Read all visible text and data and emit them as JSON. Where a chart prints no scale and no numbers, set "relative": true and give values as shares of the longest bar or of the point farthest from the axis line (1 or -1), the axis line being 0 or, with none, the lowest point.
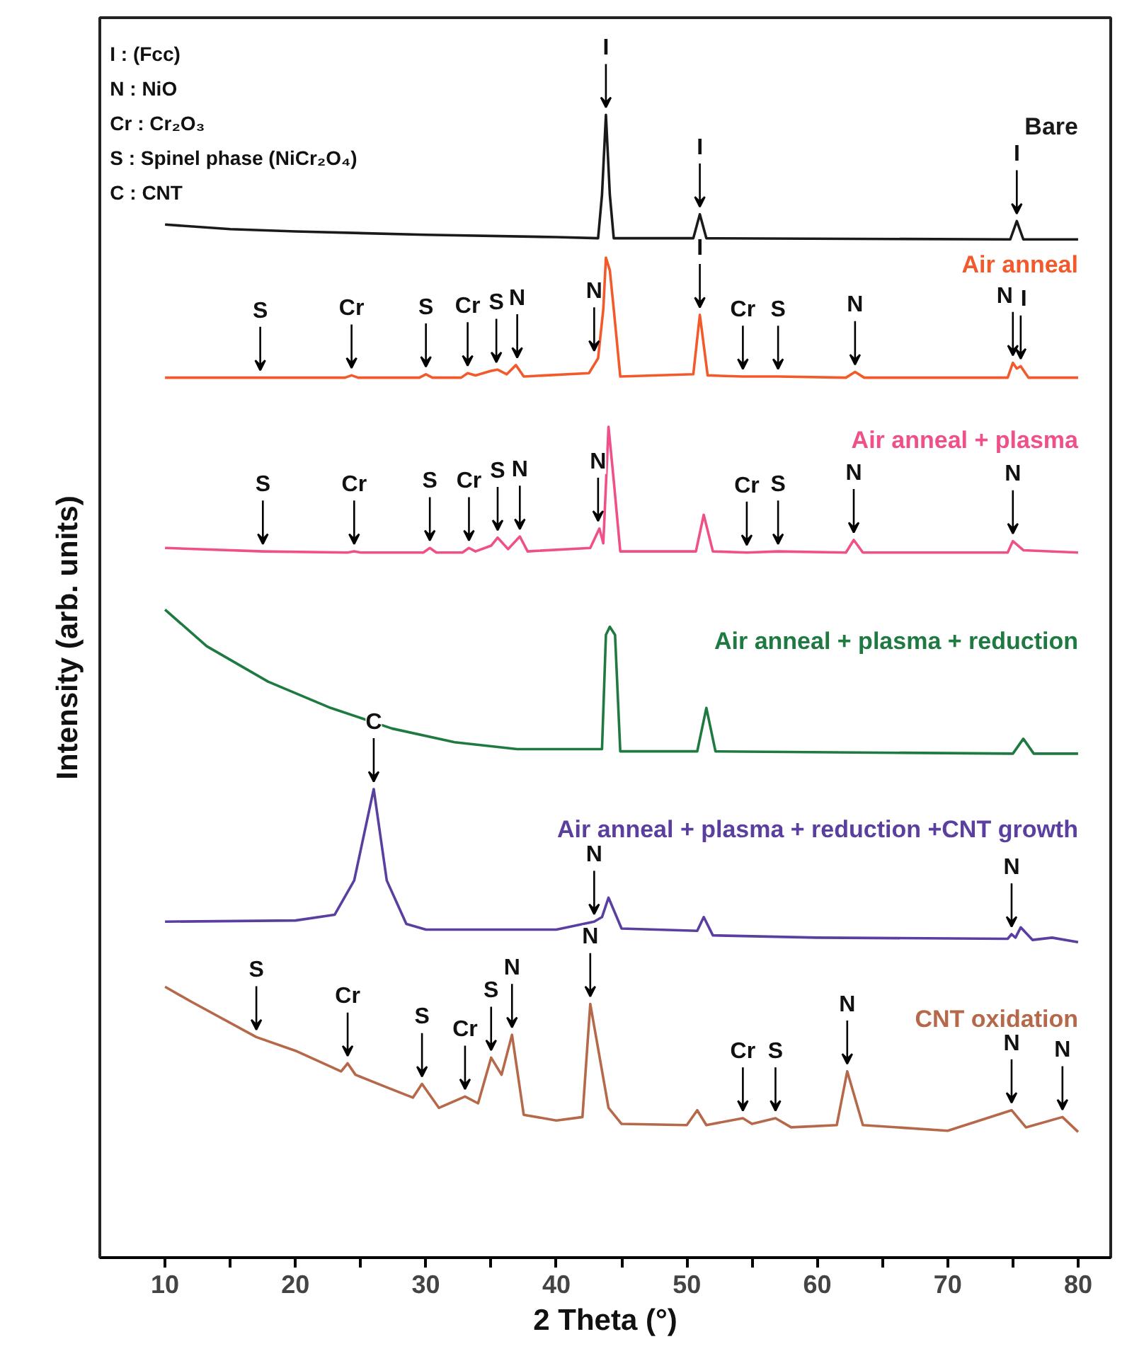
{
  "chart_data": {
    "type": "line",
    "relative": true,
    "xlabel": "2 Theta (°)",
    "ylabel": "Intensity (arb. units)",
    "xlim": [
      5,
      82.5
    ],
    "xticks": [
      10,
      {
        "value": 15,
        "label": null
      },
      20,
      {
        "value": 25,
        "label": null
      },
      30,
      {
        "value": 35,
        "label": null
      },
      40,
      {
        "value": 45,
        "label": null
      },
      50,
      {
        "value": 55,
        "label": null
      },
      60,
      {
        "value": 65,
        "label": null
      },
      70,
      {
        "value": 75,
        "label": null
      },
      80
    ],
    "tick_labels": "x",
    "grid": false,
    "legend": false,
    "series": [
      {
        "name": "Bare",
        "color": "#1a1a1a",
        "x": [
          10,
          15,
          20,
          30,
          40,
          43.2,
          43.5,
          43.8,
          44.1,
          44.4,
          50.5,
          51.0,
          51.5,
          74.8,
          75.3,
          75.8,
          80
        ],
        "values": [
          0.904,
          0.9,
          0.898,
          0.895,
          0.893,
          0.892,
          0.93,
          1.0,
          0.93,
          0.892,
          0.892,
          0.913,
          0.892,
          0.891,
          0.907,
          0.891,
          0.891
        ]
      },
      {
        "name": "Air anneal",
        "color": "#f25a2c",
        "x": [
          10,
          17,
          23.8,
          24.3,
          24.8,
          29.5,
          30.0,
          30.5,
          32.7,
          33.2,
          33.8,
          35.0,
          35.5,
          36.2,
          36.9,
          37.5,
          42.5,
          43.2,
          43.6,
          43.8,
          44.1,
          44.4,
          44.9,
          50.5,
          51.0,
          51.6,
          54.3,
          57.0,
          62.2,
          62.9,
          63.6,
          74.6,
          75.0,
          75.3,
          75.6,
          76.2,
          80
        ],
        "values": [
          0.77,
          0.77,
          0.77,
          0.772,
          0.77,
          0.77,
          0.773,
          0.77,
          0.77,
          0.774,
          0.772,
          0.776,
          0.777,
          0.773,
          0.781,
          0.771,
          0.774,
          0.787,
          0.83,
          0.875,
          0.864,
          0.83,
          0.771,
          0.773,
          0.825,
          0.772,
          0.771,
          0.771,
          0.77,
          0.775,
          0.77,
          0.77,
          0.783,
          0.778,
          0.78,
          0.77,
          0.77
        ]
      },
      {
        "name": "Air anneal + plasma",
        "color": "#f0508a",
        "x": [
          10,
          17.5,
          24.0,
          24.5,
          25.0,
          29.8,
          30.3,
          30.8,
          32.8,
          33.3,
          33.8,
          35.0,
          35.5,
          36.3,
          37.2,
          37.8,
          42.6,
          43.3,
          43.6,
          44.0,
          44.4,
          44.9,
          50.7,
          51.3,
          52.0,
          54.6,
          57.0,
          62.2,
          62.8,
          63.5,
          74.6,
          75.0,
          75.8,
          80
        ],
        "values": [
          0.621,
          0.618,
          0.617,
          0.618,
          0.617,
          0.617,
          0.621,
          0.617,
          0.617,
          0.621,
          0.618,
          0.623,
          0.63,
          0.62,
          0.631,
          0.618,
          0.621,
          0.638,
          0.625,
          0.727,
          0.68,
          0.618,
          0.618,
          0.65,
          0.618,
          0.617,
          0.618,
          0.617,
          0.628,
          0.617,
          0.617,
          0.627,
          0.619,
          0.617
        ]
      },
      {
        "name": "Air anneal + plasma + reduction",
        "color": "#1e7a40",
        "x": [
          10,
          13.2,
          17.9,
          22.7,
          27.4,
          32.2,
          37.0,
          43.5,
          43.8,
          44.1,
          44.5,
          44.9,
          50.8,
          51.5,
          52.2,
          75.0,
          75.8,
          76.6,
          80
        ],
        "values": [
          0.567,
          0.535,
          0.504,
          0.481,
          0.463,
          0.451,
          0.445,
          0.445,
          0.545,
          0.552,
          0.545,
          0.443,
          0.443,
          0.481,
          0.443,
          0.441,
          0.454,
          0.441,
          0.441
        ]
      },
      {
        "name": "Air anneal + plasma + reduction +CNT growth",
        "color": "#5b3fa0",
        "x": [
          10,
          20,
          23,
          24.5,
          26.0,
          27.0,
          28.5,
          30,
          40,
          42.9,
          43.5,
          44.0,
          45.0,
          50.8,
          51.3,
          52.0,
          60,
          74.6,
          74.9,
          75.2,
          75.6,
          76.5,
          78,
          80
        ],
        "values": [
          0.294,
          0.295,
          0.3,
          0.33,
          0.41,
          0.33,
          0.292,
          0.287,
          0.287,
          0.294,
          0.298,
          0.315,
          0.288,
          0.286,
          0.298,
          0.282,
          0.28,
          0.279,
          0.283,
          0.28,
          0.289,
          0.278,
          0.28,
          0.276
        ]
      },
      {
        "name": "CNT oxidation",
        "color": "#b5694a",
        "x": [
          10,
          12,
          17,
          20,
          23.5,
          24.0,
          24.6,
          27,
          29.0,
          29.7,
          31,
          33.0,
          34.0,
          35.0,
          35.8,
          36.6,
          37.5,
          40,
          42.0,
          42.6,
          44.0,
          45,
          50,
          50.8,
          51.5,
          54.3,
          55,
          56.8,
          58,
          61.5,
          62.3,
          63.5,
          70,
          74.9,
          76,
          78.8,
          80
        ],
        "values": [
          0.237,
          0.224,
          0.193,
          0.181,
          0.163,
          0.17,
          0.16,
          0.149,
          0.14,
          0.152,
          0.131,
          0.141,
          0.135,
          0.175,
          0.16,
          0.195,
          0.125,
          0.12,
          0.123,
          0.222,
          0.131,
          0.117,
          0.116,
          0.129,
          0.116,
          0.122,
          0.117,
          0.122,
          0.114,
          0.116,
          0.163,
          0.116,
          0.111,
          0.129,
          0.114,
          0.123,
          0.11
        ]
      }
    ],
    "annotations": [
      "I : (Fcc)",
      "N : NiO",
      "Cr : Cr₂O₃",
      "S : Spinel phase (NiCr₂O₄)",
      "C : CNT",
      {
        "text": "I",
        "x": 43.8,
        "y": 1.0
      },
      {
        "text": "I",
        "x": 51.0,
        "y": 0.913
      },
      {
        "text": "I",
        "x": 75.3,
        "y": 0.907
      },
      {
        "text": "S",
        "x": 17.3,
        "y": 0.77
      },
      {
        "text": "Cr",
        "x": 24.3,
        "y": 0.772
      },
      {
        "text": "S",
        "x": 30.0,
        "y": 0.773
      },
      {
        "text": "Cr",
        "x": 33.2,
        "y": 0.774
      },
      {
        "text": "S",
        "x": 35.4,
        "y": 0.777
      },
      {
        "text": "N",
        "x": 37.0,
        "y": 0.781
      },
      {
        "text": "N",
        "x": 42.9,
        "y": 0.787
      },
      {
        "text": "I",
        "x": 51.0,
        "y": 0.825
      },
      {
        "text": "Cr",
        "x": 54.3,
        "y": 0.771
      },
      {
        "text": "S",
        "x": 57.0,
        "y": 0.771
      },
      {
        "text": "N",
        "x": 62.9,
        "y": 0.775
      },
      {
        "text": "N",
        "x": 75.0,
        "y": 0.783
      },
      {
        "text": "I",
        "x": 75.6,
        "y": 0.78
      },
      {
        "text": "S",
        "x": 17.5,
        "y": 0.618
      },
      {
        "text": "Cr",
        "x": 24.5,
        "y": 0.618
      },
      {
        "text": "S",
        "x": 30.3,
        "y": 0.621
      },
      {
        "text": "Cr",
        "x": 33.3,
        "y": 0.621
      },
      {
        "text": "S",
        "x": 35.5,
        "y": 0.63
      },
      {
        "text": "N",
        "x": 37.2,
        "y": 0.631
      },
      {
        "text": "N",
        "x": 43.2,
        "y": 0.638
      },
      {
        "text": "Cr",
        "x": 54.6,
        "y": 0.617
      },
      {
        "text": "S",
        "x": 57.0,
        "y": 0.618
      },
      {
        "text": "N",
        "x": 62.8,
        "y": 0.628
      },
      {
        "text": "N",
        "x": 75.0,
        "y": 0.627
      },
      {
        "text": "C",
        "x": 26.0,
        "y": 0.41
      },
      {
        "text": "N",
        "x": 42.9,
        "y": 0.294
      },
      {
        "text": "N",
        "x": 74.9,
        "y": 0.283
      },
      {
        "text": "S",
        "x": 17.0,
        "y": 0.193
      },
      {
        "text": "Cr",
        "x": 24.0,
        "y": 0.17
      },
      {
        "text": "S",
        "x": 29.7,
        "y": 0.152
      },
      {
        "text": "Cr",
        "x": 33.0,
        "y": 0.141
      },
      {
        "text": "S",
        "x": 35.0,
        "y": 0.175
      },
      {
        "text": "N",
        "x": 36.6,
        "y": 0.195
      },
      {
        "text": "N",
        "x": 42.6,
        "y": 0.222
      },
      {
        "text": "Cr",
        "x": 54.3,
        "y": 0.122
      },
      {
        "text": "S",
        "x": 56.8,
        "y": 0.122
      },
      {
        "text": "N",
        "x": 62.3,
        "y": 0.163
      },
      {
        "text": "N",
        "x": 74.9,
        "y": 0.129
      },
      {
        "text": "N",
        "x": 78.8,
        "y": 0.123
      }
    ]
  }
}
